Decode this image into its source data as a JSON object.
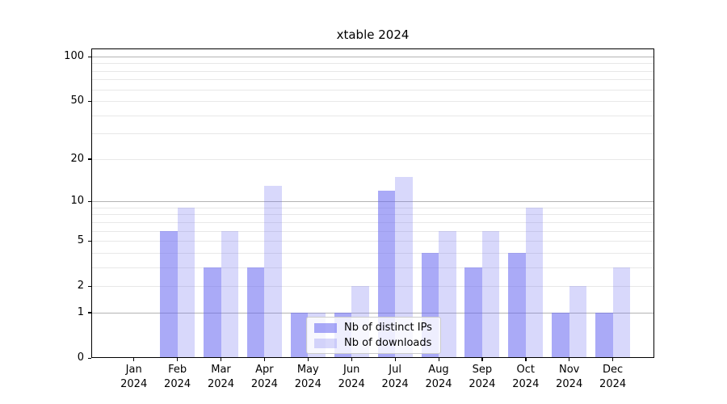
{
  "chart_data": {
    "type": "bar",
    "title": "xtable 2024",
    "categories": [
      {
        "month": "Jan",
        "year": "2024"
      },
      {
        "month": "Feb",
        "year": "2024"
      },
      {
        "month": "Mar",
        "year": "2024"
      },
      {
        "month": "Apr",
        "year": "2024"
      },
      {
        "month": "May",
        "year": "2024"
      },
      {
        "month": "Jun",
        "year": "2024"
      },
      {
        "month": "Jul",
        "year": "2024"
      },
      {
        "month": "Aug",
        "year": "2024"
      },
      {
        "month": "Sep",
        "year": "2024"
      },
      {
        "month": "Oct",
        "year": "2024"
      },
      {
        "month": "Nov",
        "year": "2024"
      },
      {
        "month": "Dec",
        "year": "2024"
      }
    ],
    "series": [
      {
        "name": "Nb of distinct IPs",
        "color": "rgba(100,100,240,0.55)",
        "values": [
          0,
          6,
          3,
          3,
          1,
          1,
          12,
          4,
          3,
          4,
          1,
          1
        ]
      },
      {
        "name": "Nb of downloads",
        "color": "rgba(100,100,240,0.25)",
        "values": [
          0,
          9,
          6,
          13,
          1,
          2,
          15,
          6,
          6,
          9,
          2,
          3
        ]
      }
    ],
    "yscale": "log1p",
    "ylim": [
      0,
      100
    ],
    "ytick_labels": [
      0,
      1,
      2,
      5,
      10,
      20,
      50,
      100
    ],
    "major_gridlines": [
      1,
      10,
      100
    ],
    "minor_gridlines": [
      2,
      3,
      4,
      5,
      6,
      7,
      8,
      9,
      20,
      30,
      40,
      50,
      60,
      70,
      80,
      90
    ],
    "grid": true,
    "legend_position": "lower center",
    "colors": {
      "background": "#ffffff",
      "grid_major": "#b4b4b4",
      "grid_minor": "#e8e8e8",
      "spine": "#000000",
      "text": "#000000",
      "legend_border": "#cccccc"
    }
  }
}
